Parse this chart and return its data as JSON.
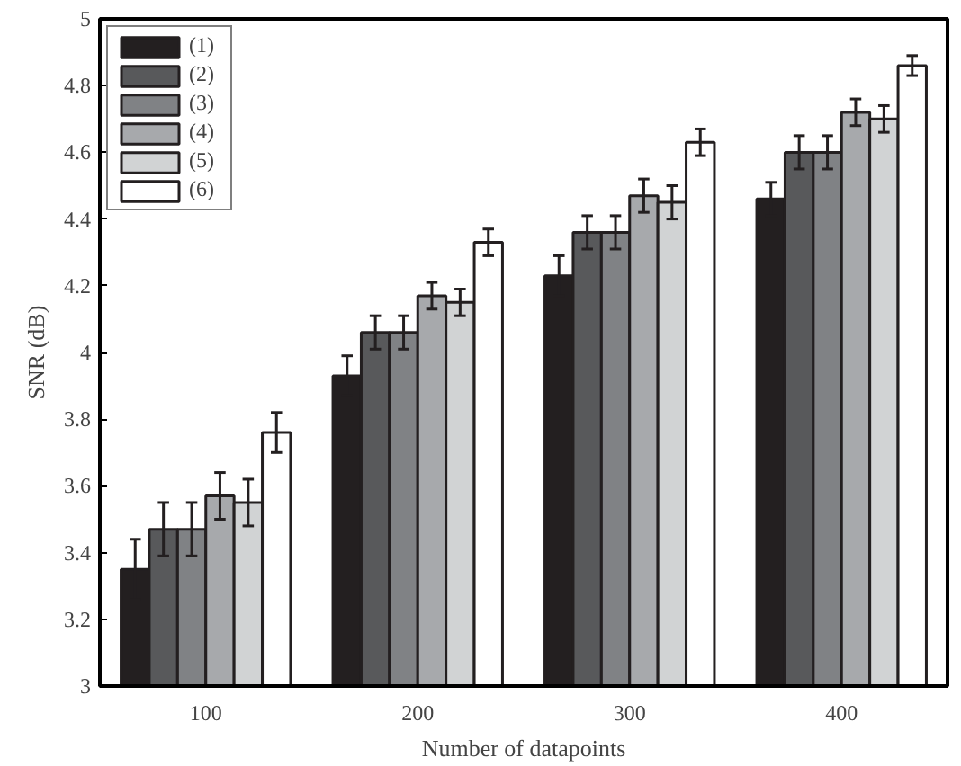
{
  "chart_data": {
    "type": "bar",
    "xlabel": "Number of datapoints",
    "ylabel": "SNR (dB)",
    "categories": [
      "100",
      "200",
      "300",
      "400"
    ],
    "series": [
      {
        "name": "(1)",
        "color": "#231f20",
        "values": [
          3.35,
          3.93,
          4.23,
          4.46
        ],
        "errors": [
          0.09,
          0.06,
          0.06,
          0.05
        ]
      },
      {
        "name": "(2)",
        "color": "#58595b",
        "values": [
          3.47,
          4.06,
          4.36,
          4.6
        ],
        "errors": [
          0.08,
          0.05,
          0.05,
          0.05
        ]
      },
      {
        "name": "(3)",
        "color": "#808285",
        "values": [
          3.47,
          4.06,
          4.36,
          4.6
        ],
        "errors": [
          0.08,
          0.05,
          0.05,
          0.05
        ]
      },
      {
        "name": "(4)",
        "color": "#a7a9ac",
        "values": [
          3.57,
          4.17,
          4.47,
          4.72
        ],
        "errors": [
          0.07,
          0.04,
          0.05,
          0.04
        ]
      },
      {
        "name": "(5)",
        "color": "#d1d3d4",
        "values": [
          3.55,
          4.15,
          4.45,
          4.7
        ],
        "errors": [
          0.07,
          0.04,
          0.05,
          0.04
        ]
      },
      {
        "name": "(6)",
        "color": "#ffffff",
        "values": [
          3.76,
          4.33,
          4.63,
          4.86
        ],
        "errors": [
          0.06,
          0.04,
          0.04,
          0.03
        ]
      }
    ],
    "ylim": [
      3,
      5
    ],
    "yticks": [
      3,
      3.2,
      3.4,
      3.6,
      3.8,
      4,
      4.2,
      4.4,
      4.6,
      4.8,
      5
    ],
    "grid": false,
    "legend": "top left"
  }
}
